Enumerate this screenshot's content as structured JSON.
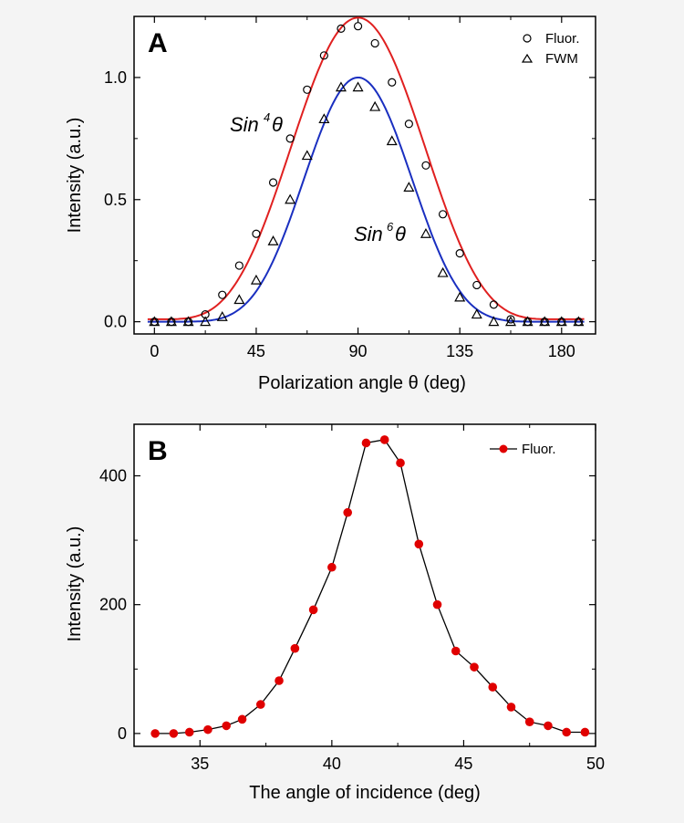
{
  "chart_data": [
    {
      "type": "scatter",
      "panel_label": "A",
      "xlabel": "Polarization angle θ (deg)",
      "ylabel": "Intensity (a.u.)",
      "xlim": [
        -9,
        195
      ],
      "ylim": [
        -0.05,
        1.25
      ],
      "xticks": [
        0,
        45,
        90,
        135,
        180
      ],
      "yticks": [
        0.0,
        0.5,
        1.0
      ],
      "ytick_labels": [
        "0.0",
        "0.5",
        "1.0"
      ],
      "legend_position": "top-right",
      "legend": [
        {
          "label": "Fluor.",
          "marker": "circle"
        },
        {
          "label": "FWM",
          "marker": "triangle"
        }
      ],
      "series": [
        {
          "name": "Fluor.",
          "marker": "circle",
          "x": [
            0,
            7.5,
            15,
            22.5,
            30,
            37.5,
            45,
            52.5,
            60,
            67.5,
            75,
            82.5,
            90,
            97.5,
            105,
            112.5,
            120,
            127.5,
            135,
            142.5,
            150,
            157.5,
            165,
            172.5,
            180,
            187.5
          ],
          "y": [
            0.0,
            0.0,
            0.0,
            0.03,
            0.11,
            0.23,
            0.36,
            0.57,
            0.75,
            0.95,
            1.09,
            1.2,
            1.21,
            1.14,
            0.98,
            0.81,
            0.64,
            0.44,
            0.28,
            0.15,
            0.07,
            0.01,
            0.0,
            0.0,
            0.0,
            0.0
          ]
        },
        {
          "name": "FWM",
          "marker": "triangle",
          "x": [
            0,
            7.5,
            15,
            22.5,
            30,
            37.5,
            45,
            52.5,
            60,
            67.5,
            75,
            82.5,
            90,
            97.5,
            105,
            112.5,
            120,
            127.5,
            135,
            142.5,
            150,
            157.5,
            165,
            172.5,
            180,
            187.5
          ],
          "y": [
            0.0,
            0.0,
            0.0,
            0.0,
            0.02,
            0.09,
            0.17,
            0.33,
            0.5,
            0.68,
            0.83,
            0.96,
            0.96,
            0.88,
            0.74,
            0.55,
            0.36,
            0.2,
            0.1,
            0.03,
            0.0,
            0.0,
            0.0,
            0.0,
            0.0,
            0.0
          ]
        }
      ],
      "fits": [
        {
          "label": "Sin4θ",
          "label_base": "Sin",
          "label_exp": "4",
          "label_var": "θ",
          "function": "sin^4",
          "amplitude": 1.235,
          "offset": 0.01,
          "center": 90,
          "color": "#e02020"
        },
        {
          "label": "Sin6θ",
          "label_base": "Sin",
          "label_exp": "6",
          "label_var": "θ",
          "function": "sin^6",
          "amplitude": 1.0,
          "offset": 0.0,
          "center": 90,
          "color": "#1a2fc0"
        }
      ]
    },
    {
      "type": "line",
      "panel_label": "B",
      "xlabel": "The angle of incidence (deg)",
      "ylabel": "Intensity (a.u.)",
      "xlim": [
        32.5,
        50
      ],
      "ylim": [
        -20,
        480
      ],
      "xticks": [
        35,
        40,
        45,
        50
      ],
      "yticks": [
        0,
        200,
        400
      ],
      "ytick_labels": [
        "0",
        "200",
        "400"
      ],
      "legend_position": "top-right",
      "legend": [
        {
          "label": "Fluor.",
          "marker": "filled-circle"
        }
      ],
      "series": [
        {
          "name": "Fluor.",
          "color": "#e00000",
          "x": [
            33.3,
            34.0,
            34.6,
            35.3,
            36.0,
            36.6,
            37.3,
            38.0,
            38.6,
            39.3,
            40.0,
            40.6,
            41.3,
            42.0,
            42.6,
            43.3,
            44.0,
            44.7,
            45.4,
            46.1,
            46.8,
            47.5,
            48.2,
            48.9,
            49.6
          ],
          "y": [
            0,
            0,
            2,
            6,
            12,
            22,
            45,
            82,
            132,
            192,
            258,
            343,
            451,
            456,
            420,
            294,
            200,
            128,
            103,
            72,
            41,
            18,
            12,
            2,
            2
          ]
        }
      ]
    }
  ]
}
